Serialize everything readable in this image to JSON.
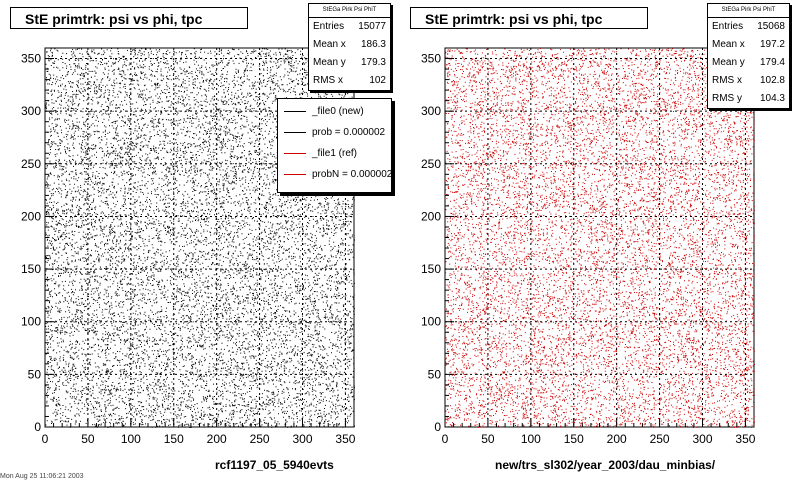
{
  "panels": [
    {
      "title": "StE primtrk: psi vs phi, tpc",
      "stats": {
        "header": "StEGa Pirk Psi PhiT",
        "rows": [
          {
            "label": "Entries",
            "value": "15077"
          },
          {
            "label": "Mean x",
            "value": "186.3"
          },
          {
            "label": "Mean y",
            "value": "179.3"
          },
          {
            "label": "RMS x",
            "value": "102"
          }
        ]
      },
      "footer": "rcf1197_05_5940evts"
    },
    {
      "title": "StE primtrk: psi vs phi, tpc",
      "stats": {
        "header": "StEGa Pirk Psi PhiT",
        "rows": [
          {
            "label": "Entries",
            "value": "15068"
          },
          {
            "label": "Mean x",
            "value": "197.2"
          },
          {
            "label": "Mean y",
            "value": "179.4"
          },
          {
            "label": "RMS x",
            "value": "102.8"
          },
          {
            "label": "RMS y",
            "value": "104.3"
          }
        ]
      },
      "footer": "new/trs_sl302/year_2003/dau_minbias/"
    }
  ],
  "legend": {
    "entries": [
      {
        "label": "_file0 (new)",
        "color": "#000000"
      },
      {
        "label": "prob = 0.000002",
        "color": "#000000"
      },
      {
        "label": "_file1 (ref)",
        "color": "#cc0000"
      },
      {
        "label": "probN = 0.000002",
        "color": "#cc0000"
      }
    ]
  },
  "corner_text": "Mon Aug 25 11:06:21 2003",
  "chart_data": [
    {
      "type": "scatter",
      "title": "StE primtrk: psi vs phi, tpc",
      "xlabel": "",
      "ylabel": "",
      "xlim": [
        0,
        360
      ],
      "ylim": [
        0,
        360
      ],
      "x_ticks": [
        0,
        50,
        100,
        150,
        200,
        250,
        300,
        350
      ],
      "y_ticks": [
        0,
        50,
        100,
        150,
        200,
        250,
        300,
        350
      ],
      "grid": true,
      "series": [
        {
          "name": "_file0 (new)",
          "color": "#000000",
          "entries": 15077,
          "distribution": "approximately uniform over 0-360 x 0-360",
          "mean_x": 186.3,
          "mean_y": 179.3,
          "rms_x": 102
        }
      ]
    },
    {
      "type": "scatter",
      "title": "StE primtrk: psi vs phi, tpc",
      "xlabel": "",
      "ylabel": "",
      "xlim": [
        0,
        360
      ],
      "ylim": [
        0,
        360
      ],
      "x_ticks": [
        0,
        50,
        100,
        150,
        200,
        250,
        300,
        350
      ],
      "y_ticks": [
        0,
        50,
        100,
        150,
        200,
        250,
        300,
        350
      ],
      "grid": true,
      "series": [
        {
          "name": "_file1 (ref)",
          "color": "#cc0000",
          "entries": 15068,
          "distribution": "approximately uniform over 0-360 x 0-360",
          "mean_x": 197.2,
          "mean_y": 179.4,
          "rms_x": 102.8,
          "rms_y": 104.3
        }
      ]
    }
  ]
}
